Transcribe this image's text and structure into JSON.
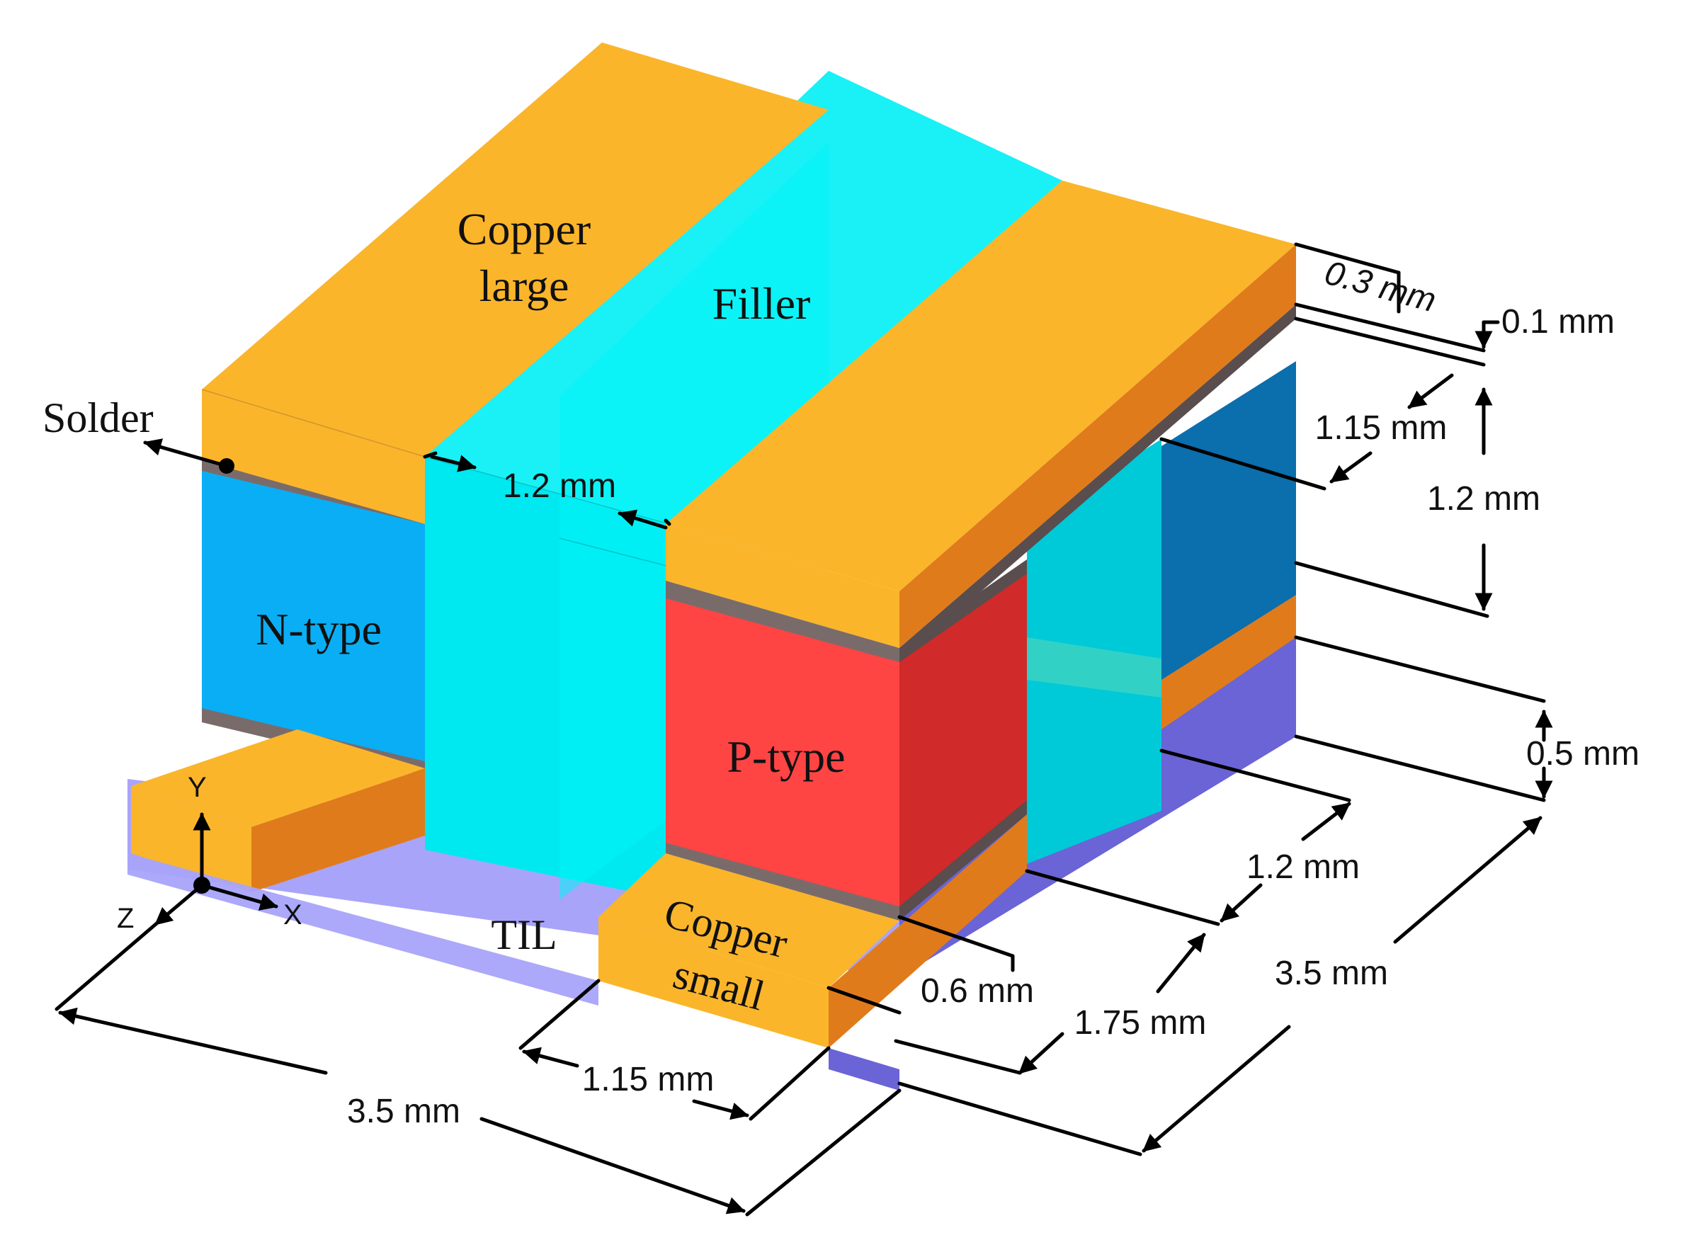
{
  "labels": {
    "copper_large": [
      "Copper",
      "large"
    ],
    "filler": "Filler",
    "solder": "Solder",
    "n_type": "N-type",
    "p_type": "P-type",
    "copper_small": [
      "Copper",
      "small"
    ],
    "til": "TIL"
  },
  "axes": {
    "x": "X",
    "y": "Y",
    "z": "Z"
  },
  "dimensions": {
    "d_0_3": "0.3 mm",
    "d_0_1": "0.1 mm",
    "d_1_15_right": "1.15 mm",
    "d_1_2_right": "1.2 mm",
    "d_1_2_gap": "1.2 mm",
    "d_0_5": "0.5 mm",
    "d_1_2_lower": "1.2 mm",
    "d_1_75": "1.75 mm",
    "d_3_5_right": "3.5 mm",
    "d_0_6": "0.6 mm",
    "d_1_15_bottom": "1.15 mm",
    "d_3_5_left": "3.5 mm"
  },
  "colors": {
    "copper_top": "#FBB52B",
    "copper_side": "#E07B1C",
    "filler": "#00F0F5",
    "solder": "#7A6B6B",
    "n_type": "#0AAEF5",
    "n_type_side": "#0A6FB0",
    "p_type": "#FF4444",
    "p_type_side": "#D02A2A",
    "til": "#A8A4FA",
    "til_side": "#6A64D6"
  }
}
